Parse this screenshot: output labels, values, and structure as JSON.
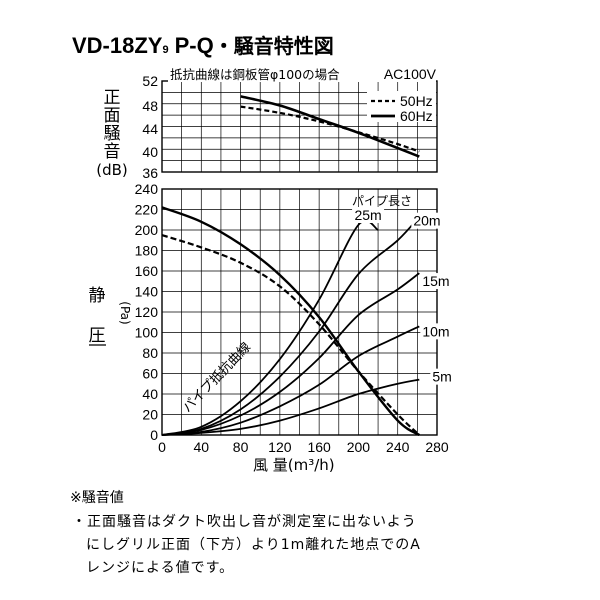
{
  "title": {
    "model": "VD-18ZY",
    "model_suffix": "9",
    "variant": "P-Q",
    "label": "・騒音特性図"
  },
  "noise_chart": {
    "header_note": "抵抗曲線は鋼板管φ100の場合",
    "voltage": "AC100V",
    "ylabel_chars": [
      "正",
      "面",
      "騒",
      "音"
    ],
    "yunit": "(dB)",
    "ylim": [
      36,
      52
    ],
    "yticks": [
      "52",
      "48",
      "44",
      "40",
      "36"
    ],
    "legend": [
      {
        "name": "50Hz",
        "style": "dashed"
      },
      {
        "name": "60Hz",
        "style": "solid"
      }
    ]
  },
  "chart_data": [
    {
      "type": "line",
      "title": "騒音特性",
      "xlim": [
        0,
        280
      ],
      "ylim": [
        36,
        52
      ],
      "series": [
        {
          "name": "50Hz",
          "style": "dashed",
          "x": [
            80,
            120,
            160,
            200,
            240,
            262
          ],
          "y": [
            47.5,
            46.4,
            44.9,
            43.0,
            40.9,
            39.6
          ]
        },
        {
          "name": "60Hz",
          "style": "solid",
          "x": [
            80,
            120,
            160,
            200,
            240,
            262
          ],
          "y": [
            49.3,
            47.7,
            45.3,
            42.9,
            40.2,
            38.7
          ]
        }
      ]
    },
    {
      "type": "line",
      "xlabel": "風 量(m³/h)",
      "ylabel": "静圧(Pa)",
      "xlim": [
        0,
        280
      ],
      "ylim": [
        0,
        240
      ],
      "xticks": [
        "0",
        "40",
        "80",
        "120",
        "160",
        "200",
        "240",
        "280"
      ],
      "yticks": [
        "240",
        "220",
        "200",
        "180",
        "160",
        "140",
        "120",
        "100",
        "80",
        "60",
        "40",
        "20",
        "0"
      ],
      "series": [
        {
          "name": "60Hz",
          "style": "solid",
          "x": [
            0,
            40,
            80,
            120,
            160,
            200,
            240,
            262
          ],
          "y": [
            222,
            208,
            186,
            156,
            115,
            62,
            14,
            0
          ]
        },
        {
          "name": "50Hz",
          "style": "dashed",
          "x": [
            0,
            40,
            80,
            120,
            160,
            200,
            240,
            262
          ],
          "y": [
            195,
            183,
            168,
            145,
            108,
            62,
            20,
            0
          ]
        }
      ],
      "pipe_curves": [
        {
          "label": "25m",
          "x": [
            0,
            40,
            80,
            120,
            160,
            200,
            220
          ],
          "y": [
            0,
            8,
            33,
            74,
            132,
            205,
            200
          ]
        },
        {
          "label": "20m",
          "x": [
            0,
            40,
            80,
            120,
            160,
            200,
            240,
            262
          ],
          "y": [
            0,
            6,
            25,
            57,
            101,
            157,
            190,
            213
          ]
        },
        {
          "label": "15m",
          "x": [
            0,
            40,
            80,
            120,
            160,
            200,
            240,
            262
          ],
          "y": [
            0,
            5,
            19,
            42,
            75,
            117,
            142,
            158
          ]
        },
        {
          "label": "10m",
          "x": [
            0,
            40,
            80,
            120,
            160,
            200,
            240,
            262
          ],
          "y": [
            0,
            3,
            12,
            28,
            49,
            77,
            96,
            106
          ]
        },
        {
          "label": "5m",
          "x": [
            0,
            40,
            80,
            120,
            160,
            200,
            240,
            262
          ],
          "y": [
            0,
            2,
            6,
            14,
            26,
            40,
            50,
            54
          ]
        }
      ],
      "pipe_title": "パイプ長さ",
      "pipe_curve_label": "パイプ抵抗曲線"
    }
  ],
  "notes": {
    "heading": "※騒音値",
    "lines": [
      "・正面騒音はダクト吹出し音が測定室に出ないよう",
      "にしグリル正面（下方）より1m離れた地点でのA",
      "レンジによる値です。"
    ]
  }
}
